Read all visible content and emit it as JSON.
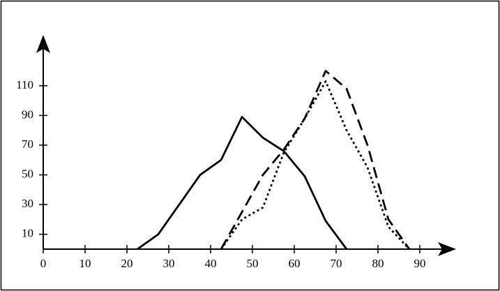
{
  "chart_data": {
    "type": "line",
    "xlim": [
      0,
      98
    ],
    "ylim": [
      0,
      140
    ],
    "xticks": [
      0,
      10,
      20,
      30,
      40,
      50,
      60,
      70,
      80,
      90
    ],
    "yticks": [
      10,
      30,
      50,
      70,
      90,
      110
    ],
    "series": [
      {
        "color": "#000000",
        "style": "solid",
        "x": [
          22.5,
          27.5,
          32.5,
          37.5,
          42.5,
          47.5,
          52.5,
          57.5,
          62.5,
          67.5,
          72.5
        ],
        "values": [
          0,
          10,
          30,
          50,
          60,
          89,
          75,
          66,
          49,
          19,
          0
        ]
      },
      {
        "color": "#000000",
        "style": "dashed",
        "x": [
          42.5,
          47.5,
          52.5,
          57.5,
          62.5,
          67.5,
          72.5,
          77.5,
          82.5,
          87.5
        ],
        "values": [
          0,
          25,
          50,
          67,
          88,
          120,
          108,
          70,
          20,
          0
        ]
      },
      {
        "color": "#000000",
        "style": "dotted",
        "x": [
          42.5,
          47.5,
          52.5,
          57.5,
          62.5,
          67.5,
          72.5,
          77.5,
          82.5,
          87.5
        ],
        "values": [
          0,
          20,
          28,
          65,
          88,
          113,
          80,
          55,
          15,
          0
        ]
      }
    ]
  }
}
